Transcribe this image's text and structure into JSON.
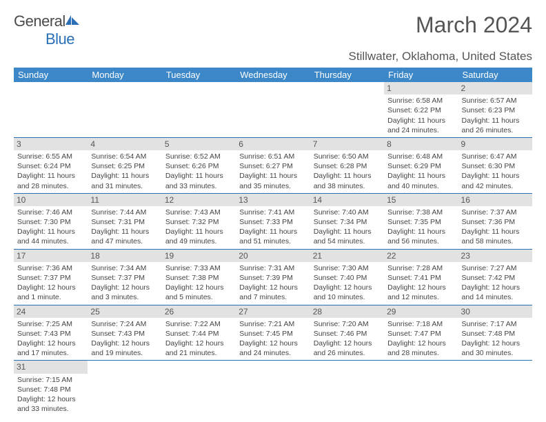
{
  "brand": {
    "word1": "General",
    "word2": "Blue"
  },
  "title": "March 2024",
  "location": "Stillwater, Oklahoma, United States",
  "colors": {
    "header_bg": "#3b87c8",
    "border": "#2a6fb5",
    "daybg": "#e2e2e2"
  },
  "dayHeaders": [
    "Sunday",
    "Monday",
    "Tuesday",
    "Wednesday",
    "Thursday",
    "Friday",
    "Saturday"
  ],
  "weeks": [
    [
      null,
      null,
      null,
      null,
      null,
      {
        "n": "1",
        "sr": "Sunrise: 6:58 AM",
        "ss": "Sunset: 6:22 PM",
        "dl": "Daylight: 11 hours and 24 minutes."
      },
      {
        "n": "2",
        "sr": "Sunrise: 6:57 AM",
        "ss": "Sunset: 6:23 PM",
        "dl": "Daylight: 11 hours and 26 minutes."
      }
    ],
    [
      {
        "n": "3",
        "sr": "Sunrise: 6:55 AM",
        "ss": "Sunset: 6:24 PM",
        "dl": "Daylight: 11 hours and 28 minutes."
      },
      {
        "n": "4",
        "sr": "Sunrise: 6:54 AM",
        "ss": "Sunset: 6:25 PM",
        "dl": "Daylight: 11 hours and 31 minutes."
      },
      {
        "n": "5",
        "sr": "Sunrise: 6:52 AM",
        "ss": "Sunset: 6:26 PM",
        "dl": "Daylight: 11 hours and 33 minutes."
      },
      {
        "n": "6",
        "sr": "Sunrise: 6:51 AM",
        "ss": "Sunset: 6:27 PM",
        "dl": "Daylight: 11 hours and 35 minutes."
      },
      {
        "n": "7",
        "sr": "Sunrise: 6:50 AM",
        "ss": "Sunset: 6:28 PM",
        "dl": "Daylight: 11 hours and 38 minutes."
      },
      {
        "n": "8",
        "sr": "Sunrise: 6:48 AM",
        "ss": "Sunset: 6:29 PM",
        "dl": "Daylight: 11 hours and 40 minutes."
      },
      {
        "n": "9",
        "sr": "Sunrise: 6:47 AM",
        "ss": "Sunset: 6:30 PM",
        "dl": "Daylight: 11 hours and 42 minutes."
      }
    ],
    [
      {
        "n": "10",
        "sr": "Sunrise: 7:46 AM",
        "ss": "Sunset: 7:30 PM",
        "dl": "Daylight: 11 hours and 44 minutes."
      },
      {
        "n": "11",
        "sr": "Sunrise: 7:44 AM",
        "ss": "Sunset: 7:31 PM",
        "dl": "Daylight: 11 hours and 47 minutes."
      },
      {
        "n": "12",
        "sr": "Sunrise: 7:43 AM",
        "ss": "Sunset: 7:32 PM",
        "dl": "Daylight: 11 hours and 49 minutes."
      },
      {
        "n": "13",
        "sr": "Sunrise: 7:41 AM",
        "ss": "Sunset: 7:33 PM",
        "dl": "Daylight: 11 hours and 51 minutes."
      },
      {
        "n": "14",
        "sr": "Sunrise: 7:40 AM",
        "ss": "Sunset: 7:34 PM",
        "dl": "Daylight: 11 hours and 54 minutes."
      },
      {
        "n": "15",
        "sr": "Sunrise: 7:38 AM",
        "ss": "Sunset: 7:35 PM",
        "dl": "Daylight: 11 hours and 56 minutes."
      },
      {
        "n": "16",
        "sr": "Sunrise: 7:37 AM",
        "ss": "Sunset: 7:36 PM",
        "dl": "Daylight: 11 hours and 58 minutes."
      }
    ],
    [
      {
        "n": "17",
        "sr": "Sunrise: 7:36 AM",
        "ss": "Sunset: 7:37 PM",
        "dl": "Daylight: 12 hours and 1 minute."
      },
      {
        "n": "18",
        "sr": "Sunrise: 7:34 AM",
        "ss": "Sunset: 7:37 PM",
        "dl": "Daylight: 12 hours and 3 minutes."
      },
      {
        "n": "19",
        "sr": "Sunrise: 7:33 AM",
        "ss": "Sunset: 7:38 PM",
        "dl": "Daylight: 12 hours and 5 minutes."
      },
      {
        "n": "20",
        "sr": "Sunrise: 7:31 AM",
        "ss": "Sunset: 7:39 PM",
        "dl": "Daylight: 12 hours and 7 minutes."
      },
      {
        "n": "21",
        "sr": "Sunrise: 7:30 AM",
        "ss": "Sunset: 7:40 PM",
        "dl": "Daylight: 12 hours and 10 minutes."
      },
      {
        "n": "22",
        "sr": "Sunrise: 7:28 AM",
        "ss": "Sunset: 7:41 PM",
        "dl": "Daylight: 12 hours and 12 minutes."
      },
      {
        "n": "23",
        "sr": "Sunrise: 7:27 AM",
        "ss": "Sunset: 7:42 PM",
        "dl": "Daylight: 12 hours and 14 minutes."
      }
    ],
    [
      {
        "n": "24",
        "sr": "Sunrise: 7:25 AM",
        "ss": "Sunset: 7:43 PM",
        "dl": "Daylight: 12 hours and 17 minutes."
      },
      {
        "n": "25",
        "sr": "Sunrise: 7:24 AM",
        "ss": "Sunset: 7:43 PM",
        "dl": "Daylight: 12 hours and 19 minutes."
      },
      {
        "n": "26",
        "sr": "Sunrise: 7:22 AM",
        "ss": "Sunset: 7:44 PM",
        "dl": "Daylight: 12 hours and 21 minutes."
      },
      {
        "n": "27",
        "sr": "Sunrise: 7:21 AM",
        "ss": "Sunset: 7:45 PM",
        "dl": "Daylight: 12 hours and 24 minutes."
      },
      {
        "n": "28",
        "sr": "Sunrise: 7:20 AM",
        "ss": "Sunset: 7:46 PM",
        "dl": "Daylight: 12 hours and 26 minutes."
      },
      {
        "n": "29",
        "sr": "Sunrise: 7:18 AM",
        "ss": "Sunset: 7:47 PM",
        "dl": "Daylight: 12 hours and 28 minutes."
      },
      {
        "n": "30",
        "sr": "Sunrise: 7:17 AM",
        "ss": "Sunset: 7:48 PM",
        "dl": "Daylight: 12 hours and 30 minutes."
      }
    ],
    [
      {
        "n": "31",
        "sr": "Sunrise: 7:15 AM",
        "ss": "Sunset: 7:48 PM",
        "dl": "Daylight: 12 hours and 33 minutes."
      },
      null,
      null,
      null,
      null,
      null,
      null
    ]
  ]
}
